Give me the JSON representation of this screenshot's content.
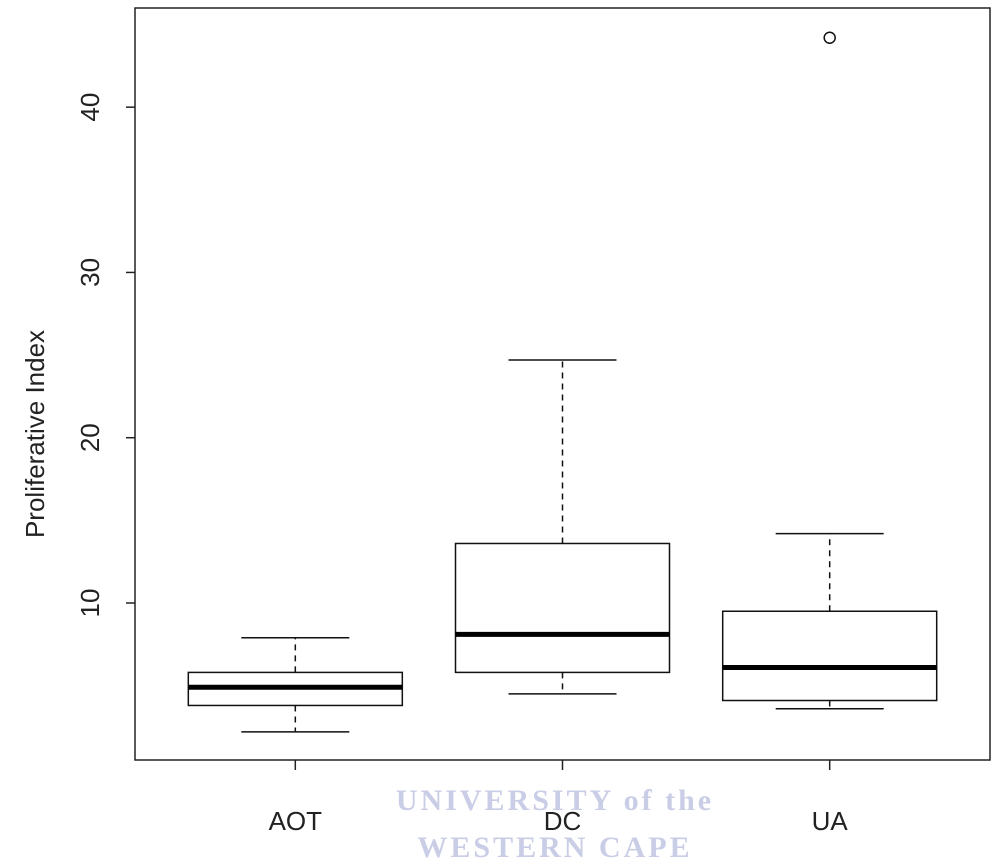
{
  "chart_data": {
    "type": "box",
    "y_label": "Proliferative Index",
    "categories": [
      "AOT",
      "DC",
      "UA"
    ],
    "boxes": [
      {
        "whisker_low": 2.2,
        "q1": 3.8,
        "median": 4.9,
        "q3": 5.8,
        "whisker_high": 7.9,
        "outliers": []
      },
      {
        "whisker_low": 4.5,
        "q1": 5.8,
        "median": 8.1,
        "q3": 13.6,
        "whisker_high": 24.7,
        "outliers": []
      },
      {
        "whisker_low": 3.6,
        "q1": 4.1,
        "median": 6.1,
        "q3": 9.5,
        "whisker_high": 14.2,
        "outliers": [
          44.2
        ]
      }
    ],
    "ylim": [
      0.5,
      46
    ],
    "yticks": [
      10,
      20,
      30,
      40
    ],
    "watermark": [
      "UNIVERSITY of the",
      "WESTERN CAPE"
    ]
  }
}
